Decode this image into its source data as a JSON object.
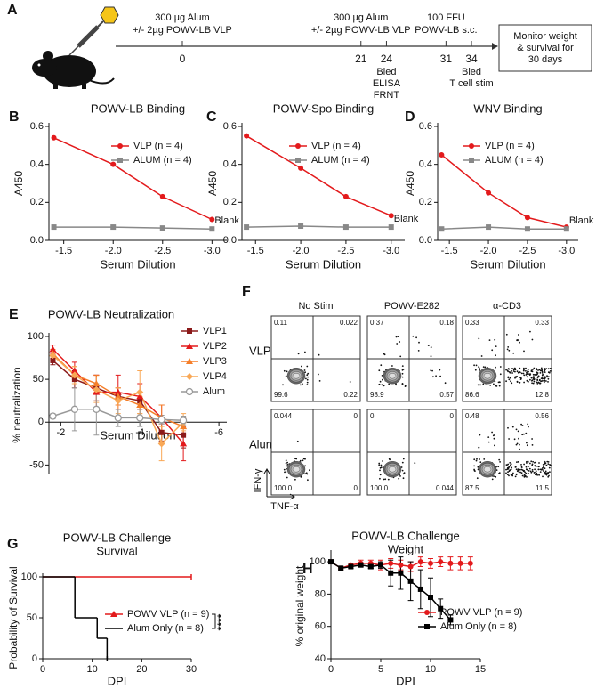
{
  "timeline": {
    "panel": "A",
    "events": [
      {
        "day": 0,
        "color": "#111111",
        "above": [
          "300 µg Alum",
          "+/- 2µg POWV-LB VLP"
        ]
      },
      {
        "day": 21,
        "color": "#111111",
        "above": [
          "300 µg Alum",
          "+/- 2µg POWV-LB VLP"
        ]
      },
      {
        "day": 24,
        "color": "#888888",
        "below": [
          "Bled",
          "ELISA",
          "FRNT"
        ]
      },
      {
        "day": 31,
        "color": "#111111",
        "above": [
          "100 FFU",
          "POWV-LB s.c."
        ]
      },
      {
        "day": 34,
        "color": "#888888",
        "below": [
          "Bled",
          "T cell stim"
        ]
      }
    ],
    "endpoint": [
      "Monitor weight",
      "& survival for",
      "30 days"
    ]
  },
  "flow": {
    "panel": "F",
    "columns": [
      "No Stim",
      "POWV-E282",
      "α-CD3"
    ],
    "rows": [
      {
        "name": "VLP",
        "plots": [
          [
            "0.11",
            "0.022",
            "99.6",
            "0.22"
          ],
          [
            "0.37",
            "0.18",
            "98.9",
            "0.57"
          ],
          [
            "0.33",
            "0.33",
            "86.6",
            "12.8"
          ]
        ]
      },
      {
        "name": "Alum",
        "plots": [
          [
            "0.044",
            "0",
            "100.0",
            "0"
          ],
          [
            "0",
            "0",
            "100.0",
            "0.044"
          ],
          [
            "0.48",
            "0.56",
            "87.5",
            "11.5"
          ]
        ]
      }
    ],
    "x_label": "TNF-α",
    "y_label": "IFN-γ"
  },
  "chart_data": [
    {
      "type": "line",
      "panel": "B",
      "title": "POWV-LB Binding",
      "x_label": "Serum Dilution",
      "y_label": "A450",
      "x": [
        -1.4,
        -2.0,
        -2.5,
        -3.0
      ],
      "xlim": [
        -1.35,
        -3.15
      ],
      "xticks": [
        -1.5,
        {
          "value": -2,
          "label": "-2.0"
        },
        -2.5,
        {
          "value": -3,
          "label": "-3.0"
        }
      ],
      "ylim": [
        0,
        0.6
      ],
      "yticks": [
        {
          "value": 0,
          "label": "0.0"
        },
        0.2,
        0.4,
        0.6
      ],
      "legend": "upper right",
      "annotation": "Blank",
      "series": [
        {
          "name": "VLP (n = 4)",
          "color": "#e31a1c",
          "marker": "circle",
          "values": [
            0.54,
            0.4,
            0.23,
            0.11
          ]
        },
        {
          "name": "ALUM (n = 4)",
          "color": "#888888",
          "marker": "square",
          "values": [
            0.07,
            0.07,
            0.065,
            0.06
          ]
        }
      ]
    },
    {
      "type": "line",
      "panel": "C",
      "title": "POWV-Spo Binding",
      "x_label": "Serum Dilution",
      "y_label": "A450",
      "x": [
        -1.4,
        -2.0,
        -2.5,
        -3.0
      ],
      "xlim": [
        -1.35,
        -3.15
      ],
      "xticks": [
        -1.5,
        {
          "value": -2,
          "label": "-2.0"
        },
        -2.5,
        {
          "value": -3,
          "label": "-3.0"
        }
      ],
      "ylim": [
        0,
        0.6
      ],
      "yticks": [
        {
          "value": 0,
          "label": "0.0"
        },
        0.2,
        0.4,
        0.6
      ],
      "legend": "upper right",
      "annotation": "Blank",
      "series": [
        {
          "name": "VLP (n = 4)",
          "color": "#e31a1c",
          "marker": "circle",
          "values": [
            0.55,
            0.38,
            0.23,
            0.13
          ]
        },
        {
          "name": "ALUM (n = 4)",
          "color": "#888888",
          "marker": "square",
          "values": [
            0.07,
            0.075,
            0.07,
            0.07
          ]
        }
      ]
    },
    {
      "type": "line",
      "panel": "D",
      "title": "WNV Binding",
      "x_label": "Serum Dilution",
      "y_label": "A450",
      "x": [
        -1.4,
        -2.0,
        -2.5,
        -3.0
      ],
      "xlim": [
        -1.35,
        -3.15
      ],
      "xticks": [
        -1.5,
        {
          "value": -2,
          "label": "-2.0"
        },
        -2.5,
        {
          "value": -3,
          "label": "-3.0"
        }
      ],
      "ylim": [
        0,
        0.6
      ],
      "yticks": [
        {
          "value": 0,
          "label": "0.0"
        },
        0.2,
        0.4,
        0.6
      ],
      "legend": "upper right",
      "annotation": "Blank",
      "series": [
        {
          "name": "VLP (n = 4)",
          "color": "#e31a1c",
          "marker": "circle",
          "values": [
            0.45,
            0.25,
            0.12,
            0.07
          ]
        },
        {
          "name": "ALUM (n = 4)",
          "color": "#888888",
          "marker": "square",
          "values": [
            0.06,
            0.07,
            0.06,
            0.06
          ]
        }
      ]
    },
    {
      "type": "line",
      "panel": "E",
      "title": "POWV-LB Neutralization",
      "x_label": "Serum Dilution",
      "y_label": "% neutralization",
      "x": [
        -1.8,
        -2.35,
        -2.9,
        -3.45,
        -4.0,
        -4.55,
        -5.1
      ],
      "xlim": [
        -1.7,
        -6.2
      ],
      "xticks": [
        -2,
        -4,
        -6
      ],
      "ylim": [
        -60,
        100
      ],
      "yticks": [
        -50,
        0,
        50,
        100
      ],
      "legend": "upper right",
      "series": [
        {
          "name": "VLP1",
          "color": "#8b1a1a",
          "marker": "square",
          "values": [
            72,
            50,
            40,
            30,
            25,
            -12,
            -15
          ],
          "errors": [
            5,
            10,
            15,
            10,
            10,
            10,
            15
          ]
        },
        {
          "name": "VLP2",
          "color": "#e31a1c",
          "marker": "triangle",
          "values": [
            85,
            60,
            35,
            35,
            30,
            5,
            -25
          ],
          "errors": [
            5,
            10,
            20,
            20,
            15,
            15,
            20
          ]
        },
        {
          "name": "VLP3",
          "color": "#f57f2a",
          "marker": "triangle",
          "values": [
            80,
            55,
            45,
            30,
            20,
            5,
            -5
          ],
          "errors": [
            5,
            10,
            10,
            10,
            10,
            15,
            10
          ]
        },
        {
          "name": "VLP4",
          "color": "#f9a856",
          "marker": "diamond",
          "values": [
            78,
            55,
            38,
            25,
            35,
            -25,
            0
          ],
          "errors": [
            5,
            10,
            15,
            15,
            25,
            20,
            10
          ]
        },
        {
          "name": "Alum",
          "color": "#999999",
          "marker": "circle-open",
          "values": [
            7,
            15,
            15,
            5,
            5,
            3,
            2
          ],
          "errors": [
            3,
            25,
            30,
            10,
            10,
            5,
            5
          ]
        }
      ]
    },
    {
      "type": "step",
      "panel": "G",
      "title": "POWV-LB  Challenge",
      "subtitle": "Survival",
      "x_label": "DPI",
      "y_label": "Probability of Survival",
      "xlim": [
        0,
        30
      ],
      "xticks": [
        0,
        10,
        20,
        30
      ],
      "ylim": [
        0,
        100
      ],
      "yticks": [
        0,
        50,
        100
      ],
      "legend": "center right",
      "annotation": "****",
      "series": [
        {
          "name": "POWV VLP (n = 9)",
          "color": "#e31a1c",
          "marker": "triangle",
          "x": [
            0,
            30
          ],
          "values": [
            100,
            100
          ]
        },
        {
          "name": "Alum Only (n = 8)",
          "color": "#000000",
          "marker": "none",
          "x": [
            0,
            6.5,
            11,
            13
          ],
          "values": [
            100,
            50,
            25,
            0
          ]
        }
      ]
    },
    {
      "type": "line",
      "panel": "H",
      "title": "POWV-LB Challenge",
      "subtitle": "Weight",
      "x_label": "DPI",
      "y_label": "% original weight",
      "xlim": [
        0,
        15
      ],
      "xticks": [
        0,
        5,
        10,
        15
      ],
      "ylim": [
        40,
        105
      ],
      "yticks": [
        40,
        60,
        80,
        100
      ],
      "legend": "center right",
      "series": [
        {
          "name": "POWV VLP (n = 9)",
          "color": "#e31a1c",
          "marker": "circle",
          "x": [
            0,
            1,
            2,
            3,
            4,
            5,
            6,
            7,
            8,
            9,
            10,
            11,
            12,
            13,
            14
          ],
          "values": [
            100,
            96,
            98,
            99,
            99,
            98,
            99,
            98,
            97,
            100,
            99,
            100,
            99,
            99,
            99
          ],
          "errors": [
            1,
            1,
            1,
            2,
            2,
            3,
            3,
            3,
            3,
            3,
            3,
            3,
            4,
            4,
            4
          ]
        },
        {
          "name": "Alum Only (n = 8)",
          "color": "#000000",
          "marker": "square",
          "x": [
            0,
            1,
            2,
            3,
            4,
            5,
            6,
            7,
            8,
            9,
            10,
            11,
            12
          ],
          "values": [
            100,
            96,
            97,
            98,
            97,
            98,
            93,
            93,
            88,
            83,
            78,
            71,
            64
          ],
          "errors": [
            1,
            1,
            1,
            1,
            1,
            2,
            8,
            10,
            12,
            12,
            12,
            6,
            3
          ]
        }
      ]
    }
  ]
}
